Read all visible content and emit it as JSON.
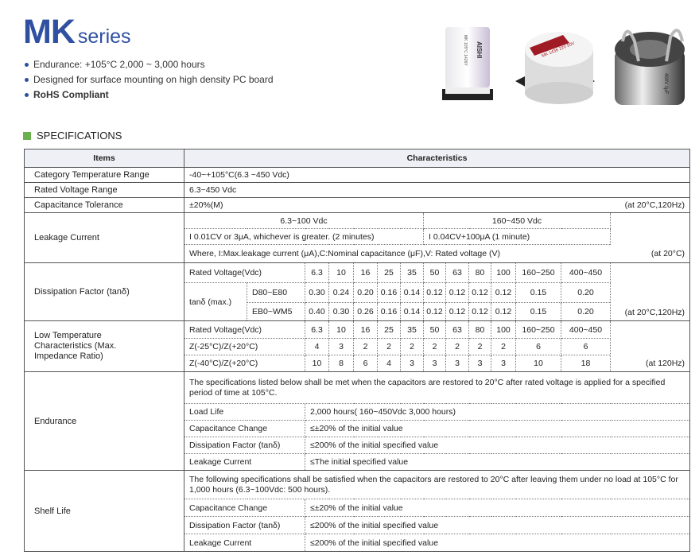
{
  "title": {
    "model": "MK",
    "series": "series"
  },
  "features": [
    {
      "text": "Endurance: +105°C  2,000 ~ 3,000 hours",
      "bold": false
    },
    {
      "text": "Designed for surface mounting on high density PC board",
      "bold": false
    },
    {
      "text": "RoHS Compliant",
      "bold": true
    }
  ],
  "product_images": [
    {
      "brand": "AISHI",
      "marking": "MK 105°C 1426Y"
    },
    {
      "brand": "AISHI",
      "marking": "MK 1436 220 50V"
    },
    {
      "brand": "AISHI",
      "marking": "400V 1μF"
    }
  ],
  "section_title": "SPECIFICATIONS",
  "colors": {
    "brand_blue": "#2f4fa0",
    "section_marker": "#6ab04c",
    "header_bg": "#eef0f5"
  },
  "table": {
    "headers": {
      "items": "Items",
      "characteristics": "Characteristics"
    },
    "category_temp": {
      "label": "Category Temperature Range",
      "value": "-40~+105°C(6.3 ~450 Vdc)"
    },
    "rated_voltage": {
      "label": "Rated Voltage Range",
      "value": "6.3~450 Vdc"
    },
    "cap_tolerance": {
      "label": "Capacitance Tolerance",
      "value": "±20%(M)",
      "note": "(at 20°C,120Hz)"
    },
    "leakage": {
      "label": "Leakage Current",
      "range_low": "6.3~100 Vdc",
      "range_high": "160~450 Vdc",
      "formula_low": "I  0.01CV or 3μA, whichever is greater. (2 minutes)",
      "formula_high": "I  0.04CV+100μA (1 minute)",
      "where": "Where, I:Max.leakage current (μA),C:Nominal capacitance (μF),V: Rated voltage (V)",
      "note": "(at 20°C)"
    },
    "dissipation": {
      "label": "Dissipation Factor (tanδ)",
      "rated_voltage_label": "Rated Voltage(Vdc)",
      "voltages": [
        "6.3",
        "10",
        "16",
        "25",
        "35",
        "50",
        "63",
        "80",
        "100",
        "160~250",
        "400~450"
      ],
      "tan_label": "tanδ (max.)",
      "rows": [
        {
          "name": "D80~E80",
          "values": [
            "0.30",
            "0.24",
            "0.20",
            "0.16",
            "0.14",
            "0.12",
            "0.12",
            "0.12",
            "0.12",
            "0.15",
            "0.20"
          ]
        },
        {
          "name": "EB0~WM5",
          "values": [
            "0.40",
            "0.30",
            "0.26",
            "0.16",
            "0.14",
            "0.12",
            "0.12",
            "0.12",
            "0.12",
            "0.15",
            "0.20"
          ]
        }
      ],
      "note": "(at 20°C,120Hz)"
    },
    "low_temp": {
      "label": "Low Temperature Characteristics (Max. Impedance Ratio)",
      "rated_voltage_label": "Rated Voltage(Vdc)",
      "voltages": [
        "6.3",
        "10",
        "16",
        "25",
        "35",
        "50",
        "63",
        "80",
        "100",
        "160~250",
        "400~450"
      ],
      "rows": [
        {
          "name": "Z(-25°C)/Z(+20°C)",
          "values": [
            "4",
            "3",
            "2",
            "2",
            "2",
            "2",
            "2",
            "2",
            "2",
            "6",
            "6"
          ]
        },
        {
          "name": "Z(-40°C)/Z(+20°C)",
          "values": [
            "10",
            "8",
            "6",
            "4",
            "3",
            "3",
            "3",
            "3",
            "3",
            "10",
            "18"
          ]
        }
      ],
      "note": "(at 120Hz)"
    },
    "endurance": {
      "label": "Endurance",
      "intro": "The specifications listed below shall be met when the capacitors are restored to 20°C after rated voltage is applied for a specified period of time at 105°C.",
      "rows": [
        {
          "name": "Load Life",
          "value": "2,000 hours( 160~450Vdc   3,000 hours)"
        },
        {
          "name": "Capacitance Change",
          "value": "≤±20% of the initial value"
        },
        {
          "name": "Dissipation Factor (tanδ)",
          "value": "≤200% of the initial specified value"
        },
        {
          "name": "Leakage Current",
          "value": "≤The initial specified value"
        }
      ]
    },
    "shelf_life": {
      "label": "Shelf Life",
      "intro": "The following specifications shall be satisfied when the capacitors are restored to 20°C after leaving them under no load at 105°C for 1,000 hours (6.3~100Vdc: 500 hours).",
      "rows": [
        {
          "name": "Capacitance Change",
          "value": "≤±20% of the initial value"
        },
        {
          "name": "Dissipation Factor (tanδ)",
          "value": "≤200% of the initial specified value"
        },
        {
          "name": "Leakage Current",
          "value": "≤200% of the initial specified value"
        }
      ]
    }
  }
}
